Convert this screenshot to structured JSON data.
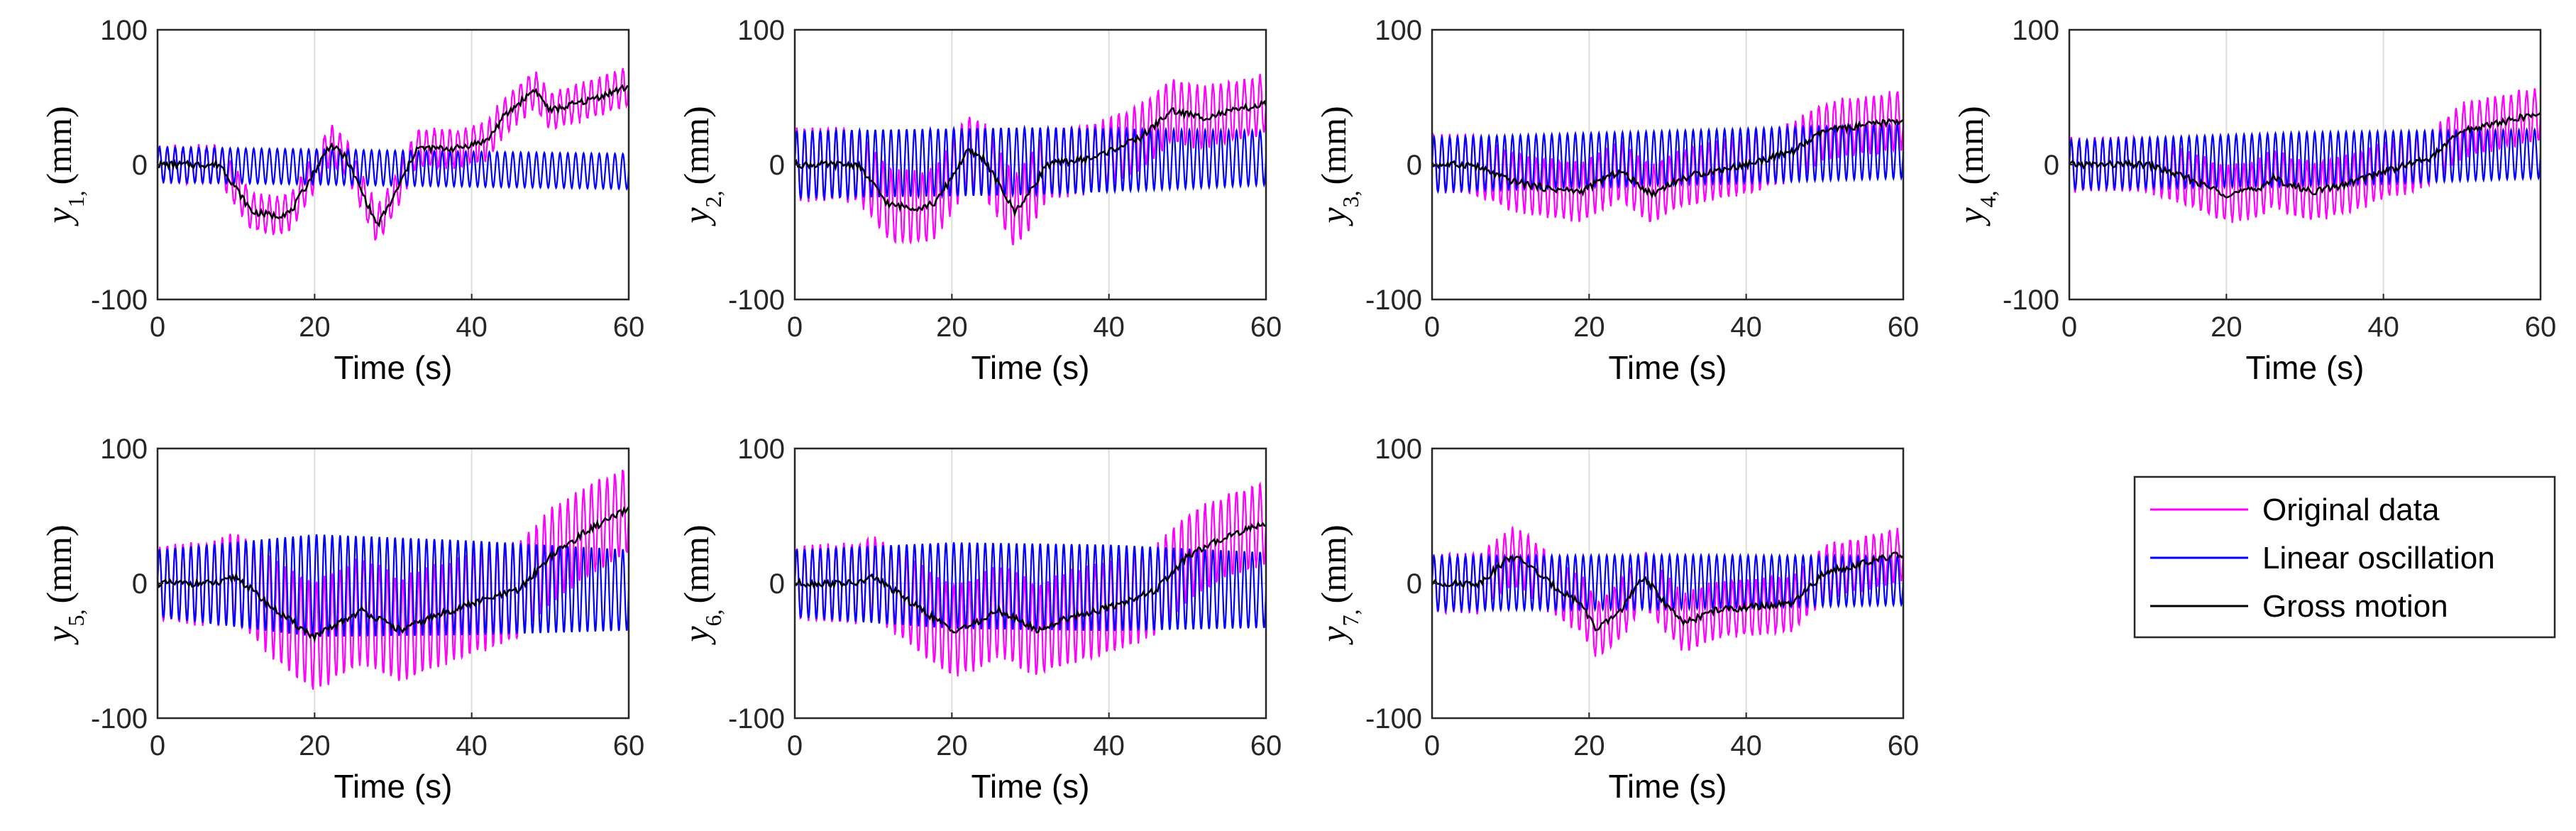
{
  "chart_data": {
    "type": "line",
    "layout": "grid-2x4",
    "legend": {
      "placement": "bottom-right",
      "entries": [
        {
          "key": "orig",
          "label": "Original data",
          "color": "#ff00ff"
        },
        {
          "key": "lin",
          "label": "Linear oscillation",
          "color": "#0000ff"
        },
        {
          "key": "gross",
          "label": "Gross motion",
          "color": "#000000"
        }
      ]
    },
    "x_ticks": [
      "0",
      "20",
      "40",
      "60"
    ],
    "y_ticks": [
      "100",
      "0",
      "-100"
    ],
    "panels": [
      {
        "ylabel_var": "y",
        "ylabel_sub": "1,",
        "ylabel_unit": "(mm)",
        "xlabel": "Time (s)",
        "xlim": [
          0,
          60
        ],
        "ylim": [
          -100,
          100
        ],
        "grid": true,
        "gross_knots": [
          [
            0,
            0
          ],
          [
            8,
            0
          ],
          [
            12,
            -35
          ],
          [
            15,
            -38
          ],
          [
            17,
            -35
          ],
          [
            22,
            15
          ],
          [
            24,
            5
          ],
          [
            28,
            -45
          ],
          [
            30,
            -25
          ],
          [
            33,
            12
          ],
          [
            38,
            12
          ],
          [
            42,
            18
          ],
          [
            44,
            35
          ],
          [
            48,
            56
          ],
          [
            50,
            40
          ],
          [
            55,
            48
          ],
          [
            60,
            58
          ]
        ],
        "osc_amp": [
          [
            0,
            13
          ],
          [
            30,
            13
          ],
          [
            60,
            13
          ]
        ],
        "osc_drift": [
          [
            0,
            0
          ],
          [
            60,
            -5
          ]
        ],
        "osc_freq": 1.0
      },
      {
        "ylabel_var": "y",
        "ylabel_sub": "2,",
        "ylabel_unit": "(mm)",
        "xlabel": "Time (s)",
        "xlim": [
          0,
          60
        ],
        "ylim": [
          -100,
          100
        ],
        "grid": true,
        "gross_knots": [
          [
            0,
            0
          ],
          [
            8,
            0
          ],
          [
            12,
            -30
          ],
          [
            16,
            -32
          ],
          [
            18,
            -28
          ],
          [
            22,
            10
          ],
          [
            24,
            5
          ],
          [
            28,
            -35
          ],
          [
            30,
            -20
          ],
          [
            32,
            0
          ],
          [
            38,
            5
          ],
          [
            44,
            20
          ],
          [
            48,
            40
          ],
          [
            52,
            35
          ],
          [
            60,
            45
          ]
        ],
        "osc_amp": [
          [
            0,
            25
          ],
          [
            30,
            25
          ],
          [
            60,
            20
          ]
        ],
        "osc_drift": [
          [
            0,
            0
          ],
          [
            60,
            5
          ]
        ],
        "osc_freq": 1.0
      },
      {
        "ylabel_var": "y",
        "ylabel_sub": "3,",
        "ylabel_unit": "(mm)",
        "xlabel": "Time (s)",
        "xlim": [
          0,
          60
        ],
        "ylim": [
          -100,
          100
        ],
        "grid": true,
        "gross_knots": [
          [
            0,
            0
          ],
          [
            5,
            0
          ],
          [
            10,
            -12
          ],
          [
            15,
            -18
          ],
          [
            19,
            -20
          ],
          [
            22,
            -10
          ],
          [
            24,
            -5
          ],
          [
            28,
            -22
          ],
          [
            30,
            -15
          ],
          [
            33,
            -8
          ],
          [
            40,
            0
          ],
          [
            46,
            10
          ],
          [
            50,
            25
          ],
          [
            60,
            33
          ]
        ],
        "osc_amp": [
          [
            0,
            20
          ],
          [
            30,
            20
          ],
          [
            60,
            20
          ]
        ],
        "osc_drift": [
          [
            0,
            0
          ],
          [
            60,
            10
          ]
        ],
        "osc_freq": 1.0
      },
      {
        "ylabel_var": "y",
        "ylabel_sub": "4,",
        "ylabel_unit": "(mm)",
        "xlabel": "Time (s)",
        "xlim": [
          0,
          60
        ],
        "ylim": [
          -100,
          100
        ],
        "grid": true,
        "gross_knots": [
          [
            0,
            0
          ],
          [
            10,
            0
          ],
          [
            15,
            -10
          ],
          [
            20,
            -22
          ],
          [
            24,
            -18
          ],
          [
            26,
            -10
          ],
          [
            28,
            -15
          ],
          [
            31,
            -20
          ],
          [
            35,
            -15
          ],
          [
            40,
            -5
          ],
          [
            46,
            5
          ],
          [
            50,
            25
          ],
          [
            60,
            38
          ]
        ],
        "osc_amp": [
          [
            0,
            18
          ],
          [
            30,
            20
          ],
          [
            60,
            18
          ]
        ],
        "osc_drift": [
          [
            0,
            0
          ],
          [
            60,
            8
          ]
        ],
        "osc_freq": 1.0
      },
      {
        "ylabel_var": "y",
        "ylabel_sub": "5,",
        "ylabel_unit": "(mm)",
        "xlabel": "Time (s)",
        "xlim": [
          0,
          60
        ],
        "ylim": [
          -100,
          100
        ],
        "grid": true,
        "gross_knots": [
          [
            0,
            0
          ],
          [
            8,
            0
          ],
          [
            10,
            5
          ],
          [
            15,
            -20
          ],
          [
            20,
            -40
          ],
          [
            23,
            -30
          ],
          [
            26,
            -20
          ],
          [
            31,
            -35
          ],
          [
            35,
            -25
          ],
          [
            40,
            -15
          ],
          [
            46,
            -5
          ],
          [
            50,
            20
          ],
          [
            55,
            40
          ],
          [
            60,
            55
          ]
        ],
        "osc_amp": [
          [
            0,
            25
          ],
          [
            20,
            38
          ],
          [
            40,
            35
          ],
          [
            60,
            30
          ]
        ],
        "osc_drift": [
          [
            0,
            0
          ],
          [
            60,
            -5
          ]
        ],
        "osc_freq": 1.0
      },
      {
        "ylabel_var": "y",
        "ylabel_sub": "6,",
        "ylabel_unit": "(mm)",
        "xlabel": "Time (s)",
        "xlim": [
          0,
          60
        ],
        "ylim": [
          -100,
          100
        ],
        "grid": true,
        "gross_knots": [
          [
            0,
            0
          ],
          [
            8,
            0
          ],
          [
            10,
            5
          ],
          [
            15,
            -15
          ],
          [
            20,
            -35
          ],
          [
            23,
            -30
          ],
          [
            26,
            -20
          ],
          [
            31,
            -35
          ],
          [
            35,
            -25
          ],
          [
            40,
            -18
          ],
          [
            46,
            -5
          ],
          [
            50,
            20
          ],
          [
            55,
            35
          ],
          [
            60,
            45
          ]
        ],
        "osc_amp": [
          [
            0,
            25
          ],
          [
            20,
            32
          ],
          [
            40,
            32
          ],
          [
            60,
            28
          ]
        ],
        "osc_drift": [
          [
            0,
            0
          ],
          [
            60,
            -5
          ]
        ],
        "osc_freq": 1.0
      },
      {
        "ylabel_var": "y",
        "ylabel_sub": "7,",
        "ylabel_unit": "(mm)",
        "xlabel": "Time (s)",
        "xlim": [
          0,
          60
        ],
        "ylim": [
          -100,
          100
        ],
        "grid": true,
        "gross_knots": [
          [
            0,
            0
          ],
          [
            6,
            0
          ],
          [
            10,
            20
          ],
          [
            12,
            15
          ],
          [
            15,
            0
          ],
          [
            19,
            -15
          ],
          [
            21,
            -35
          ],
          [
            24,
            -20
          ],
          [
            27,
            5
          ],
          [
            29,
            -10
          ],
          [
            32,
            -30
          ],
          [
            36,
            -20
          ],
          [
            40,
            -18
          ],
          [
            46,
            -15
          ],
          [
            50,
            8
          ],
          [
            60,
            22
          ]
        ],
        "osc_amp": [
          [
            0,
            20
          ],
          [
            30,
            20
          ],
          [
            60,
            18
          ]
        ],
        "osc_drift": [
          [
            0,
            0
          ],
          [
            60,
            2
          ]
        ],
        "osc_freq": 1.0
      }
    ]
  }
}
